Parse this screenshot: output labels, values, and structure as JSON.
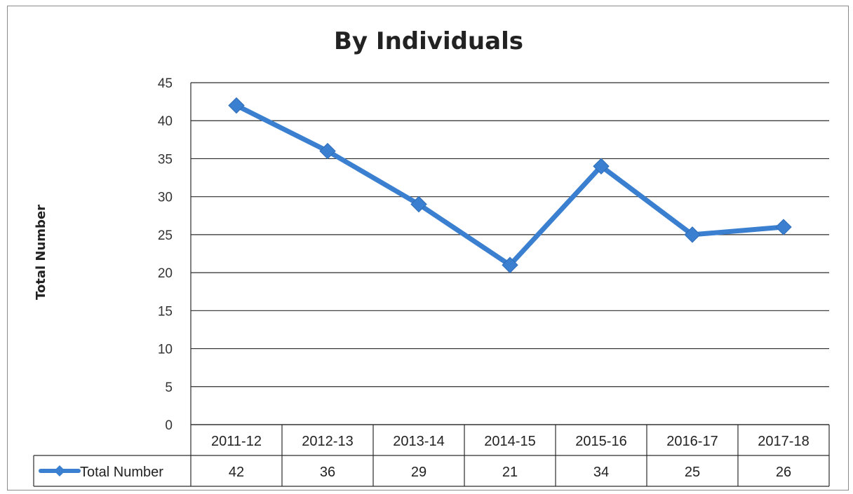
{
  "chart_data": {
    "type": "line",
    "title": "By Individuals",
    "ylabel": "Total Number",
    "xlabel": "",
    "ylim": [
      0,
      45
    ],
    "yticks": [
      0,
      5,
      10,
      15,
      20,
      25,
      30,
      35,
      40,
      45
    ],
    "grid": true,
    "categories": [
      "2011-12",
      "2012-13",
      "2013-14",
      "2014-15",
      "2015-16",
      "2016-17",
      "2017-18"
    ],
    "series": [
      {
        "name": "Total Number",
        "values": [
          42,
          36,
          29,
          21,
          34,
          25,
          26
        ],
        "color": "#3a7fd0"
      }
    ],
    "data_table": true,
    "legend": "in data table"
  }
}
